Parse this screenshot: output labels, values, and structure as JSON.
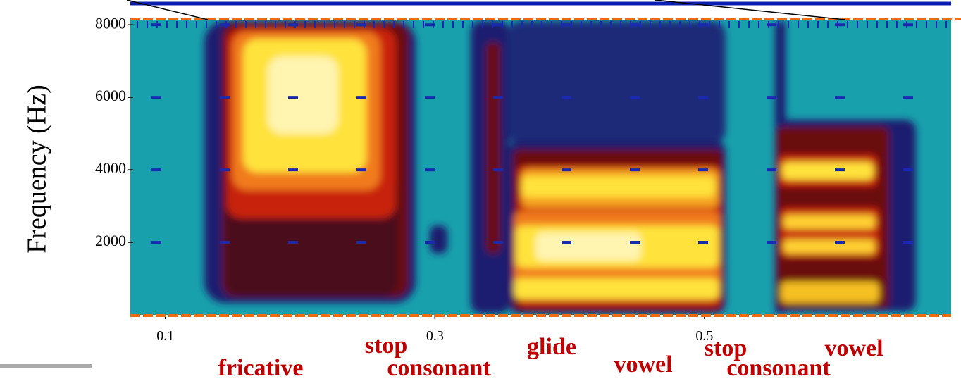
{
  "chart_data": {
    "type": "spectrogram",
    "ylabel": "Frequency (Hz)",
    "xlim": [
      0.074,
      0.683
    ],
    "xticks": [
      0.1,
      0.3,
      0.5
    ],
    "ylim": [
      0,
      8140
    ],
    "yticks": [
      2000,
      4000,
      6000,
      8000
    ],
    "annotations": [
      [
        "fricative"
      ],
      [
        "stop",
        "consonant"
      ],
      [
        "glide"
      ],
      [
        "vowel"
      ],
      [
        "stop",
        "consonant"
      ],
      [
        "vowel"
      ]
    ]
  }
}
